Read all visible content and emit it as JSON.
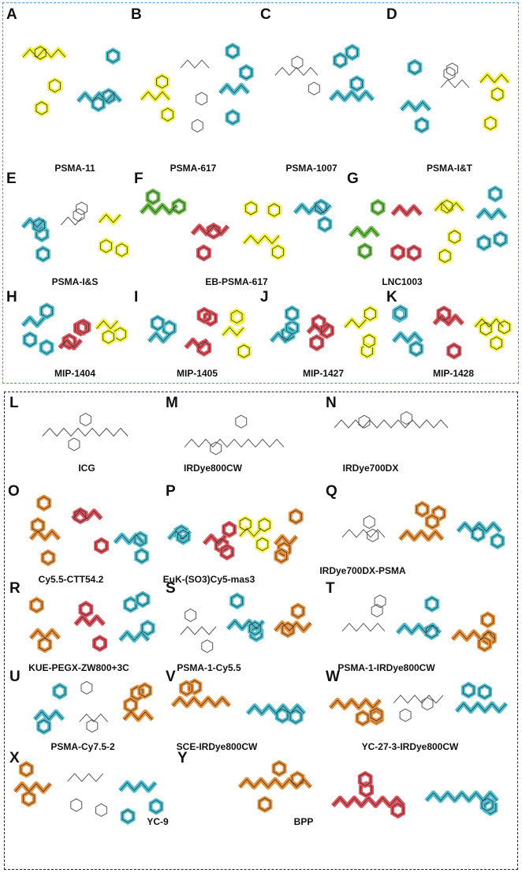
{
  "colors": {
    "targeting": "#4bbfd0",
    "chelator": "#f2f23a",
    "linker": "#e0505a",
    "albumin_binder": "#6cc04a",
    "dye": "#e8903a",
    "plain": "#555555"
  },
  "panels": [
    {
      "letter": "A",
      "name": "PSMA-11"
    },
    {
      "letter": "B",
      "name": "PSMA-617"
    },
    {
      "letter": "C",
      "name": "PSMA-1007"
    },
    {
      "letter": "D",
      "name": "PSMA-I&T"
    },
    {
      "letter": "E",
      "name": "PSMA-I&S"
    },
    {
      "letter": "F",
      "name": "EB-PSMA-617"
    },
    {
      "letter": "G",
      "name": "LNC1003"
    },
    {
      "letter": "H",
      "name": "MIP-1404"
    },
    {
      "letter": "I",
      "name": "MIP-1405"
    },
    {
      "letter": "J",
      "name": "MIP-1427"
    },
    {
      "letter": "K",
      "name": "MIP-1428"
    },
    {
      "letter": "L",
      "name": "ICG"
    },
    {
      "letter": "M",
      "name": "IRDye800CW"
    },
    {
      "letter": "N",
      "name": "IRDye700DX"
    },
    {
      "letter": "O",
      "name": "Cy5.5-CTT54.2"
    },
    {
      "letter": "P",
      "name": "EuK-(SO3)Cy5-mas3"
    },
    {
      "letter": "Q",
      "name": "IRDye700DX-PSMA"
    },
    {
      "letter": "R",
      "name": "KUE-PEGX-ZW800+3C"
    },
    {
      "letter": "S",
      "name": "PSMA-1-Cy5.5"
    },
    {
      "letter": "T",
      "name": "PSMA-1-IRDye800CW"
    },
    {
      "letter": "U",
      "name": "PSMA-Cy7.5-2"
    },
    {
      "letter": "V",
      "name": "SCE-IRDye800CW"
    },
    {
      "letter": "W",
      "name": "YC-27-3-IRDye800CW"
    },
    {
      "letter": "X",
      "name": "YC-9"
    },
    {
      "letter": "Y",
      "name": "BPP"
    }
  ]
}
